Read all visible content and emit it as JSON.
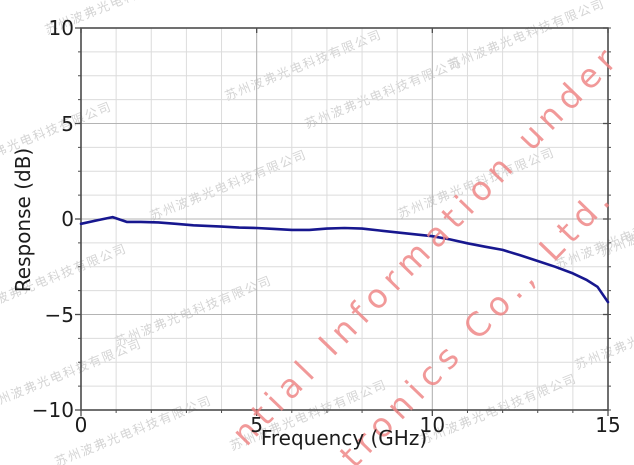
{
  "watermarks": {
    "company_cn": "苏州波弗光电科技有限公司",
    "red_line1": "ntial Information under",
    "red_line2": "tronics Co., Ltd.",
    "red_color": "#ef8383",
    "gray_color": "#d4d4d4"
  },
  "chart_data": {
    "type": "line",
    "title": "",
    "xlabel": "Frequency (GHz)",
    "ylabel": "Response (dB)",
    "xlim": [
      0,
      15
    ],
    "ylim": [
      -10,
      10
    ],
    "x_major_ticks": [
      0,
      5,
      10,
      15
    ],
    "y_major_ticks": [
      -10,
      -5,
      0,
      5,
      10
    ],
    "x_minor_step": 1,
    "y_minor_step": 1.25,
    "grid": true,
    "frame_color": "#4d4d4d",
    "major_grid_color": "#b4b4b4",
    "minor_grid_color": "#dcdcdc",
    "series": [
      {
        "name": "response",
        "color": "#17178f",
        "x": [
          0,
          0.5,
          0.9,
          1.3,
          1.7,
          2.2,
          2.7,
          3.2,
          4.0,
          4.5,
          5.0,
          5.5,
          6.0,
          6.5,
          7.0,
          7.5,
          8.0,
          8.5,
          9.0,
          9.5,
          10.0,
          10.5,
          11.0,
          11.5,
          12.0,
          12.5,
          13.0,
          13.5,
          14.0,
          14.4,
          14.7,
          15.0
        ],
        "y": [
          -0.25,
          -0.05,
          0.1,
          -0.15,
          -0.15,
          -0.18,
          -0.25,
          -0.33,
          -0.4,
          -0.45,
          -0.47,
          -0.52,
          -0.57,
          -0.57,
          -0.5,
          -0.47,
          -0.5,
          -0.6,
          -0.7,
          -0.8,
          -0.9,
          -1.07,
          -1.27,
          -1.45,
          -1.62,
          -1.9,
          -2.2,
          -2.5,
          -2.85,
          -3.2,
          -3.55,
          -4.35
        ]
      }
    ]
  }
}
